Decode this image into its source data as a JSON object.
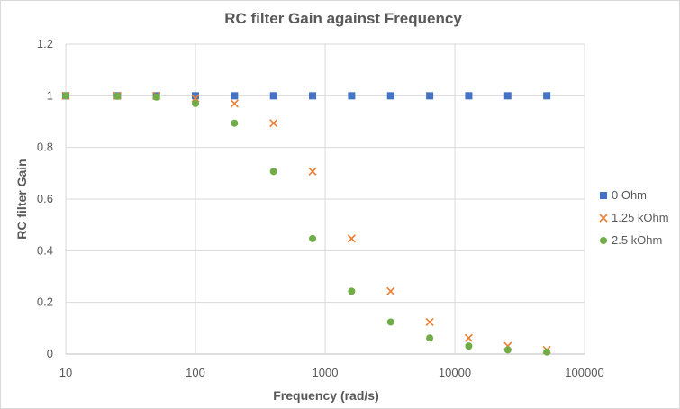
{
  "chart_data": {
    "type": "scatter",
    "title": "RC filter Gain against Frequency",
    "xlabel": "Frequency (rad/s)",
    "ylabel": "RC filter Gain",
    "x_scale": "log",
    "xlim": [
      10,
      100000
    ],
    "ylim": [
      0,
      1.2
    ],
    "x_ticks": [
      10,
      100,
      1000,
      10000,
      100000
    ],
    "x_tick_labels": [
      "10",
      "100",
      "1000",
      "10000",
      "100000"
    ],
    "y_ticks": [
      0,
      0.2,
      0.4,
      0.6,
      0.8,
      1,
      1.2
    ],
    "y_tick_labels": [
      "0",
      "0.2",
      "0.4",
      "0.6",
      "0.8",
      "1",
      "1.2"
    ],
    "grid": true,
    "legend_position": "right",
    "series": [
      {
        "name": "0 Ohm",
        "marker": "square",
        "color": "#4472c4",
        "x": [
          10,
          25,
          50,
          100,
          200,
          400,
          800,
          1600,
          3200,
          6400,
          12800,
          25600,
          51200
        ],
        "y": [
          1,
          1,
          1,
          1,
          1,
          1,
          1,
          1,
          1,
          1,
          1,
          1,
          1
        ]
      },
      {
        "name": "1.25 kOhm",
        "marker": "x",
        "color": "#ed7d31",
        "x": [
          10,
          25,
          50,
          100,
          200,
          400,
          800,
          1600,
          3200,
          6400,
          12800,
          25600,
          51200
        ],
        "y": [
          1,
          1,
          1,
          0.99,
          0.97,
          0.894,
          0.707,
          0.447,
          0.243,
          0.124,
          0.062,
          0.031,
          0.016
        ]
      },
      {
        "name": "2.5 kOhm",
        "marker": "circle",
        "color": "#70ad47",
        "x": [
          10,
          25,
          50,
          100,
          200,
          400,
          800,
          1600,
          3200,
          6400,
          12800,
          25600,
          51200
        ],
        "y": [
          1,
          0.998,
          0.995,
          0.97,
          0.894,
          0.707,
          0.447,
          0.243,
          0.124,
          0.062,
          0.031,
          0.016,
          0.008
        ]
      }
    ]
  }
}
